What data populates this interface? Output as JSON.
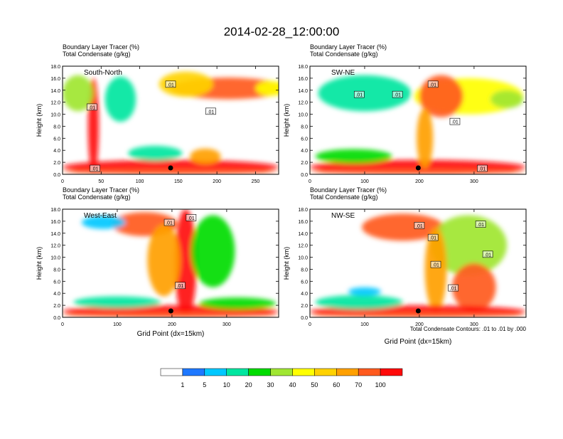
{
  "title": "2014-02-28_12:00:00",
  "colors": [
    "#ffffff",
    "#1e78ff",
    "#00c8ff",
    "#00e6a0",
    "#00dc00",
    "#a0e632",
    "#ffff00",
    "#ffd200",
    "#ffa000",
    "#ff5a1e",
    "#ff0a0a"
  ],
  "colorbar": {
    "labels": [
      "1",
      "5",
      "10",
      "20",
      "30",
      "40",
      "50",
      "60",
      "70",
      "100"
    ]
  },
  "footnote": "Total Condensate Contours: .01 to .01 by .000",
  "chart_data": [
    {
      "type": "heatmap",
      "name": "South-North",
      "label": "South-North",
      "title_lines": [
        "Boundary Layer Tracer    (%)",
        "Total Condensate    (g/kg)"
      ],
      "ylabel": "Height (km)",
      "xlabel": "",
      "xlim": [
        0,
        280
      ],
      "ylim": [
        0,
        18
      ],
      "xticks": [
        0,
        50,
        100,
        150,
        200,
        250
      ],
      "yticks": [
        "0.0",
        "2.0",
        "4.0",
        "6.0",
        "8.0",
        "10.0",
        "12.0",
        "14.0",
        "16.0",
        "18.0"
      ],
      "marker_x": 140,
      "contour_labels": [
        {
          "x": 140,
          "y": 15.0,
          "t": ".01"
        },
        {
          "x": 38,
          "y": 11.2,
          "t": ".01"
        },
        {
          "x": 192,
          "y": 10.5,
          "t": ".01"
        },
        {
          "x": 42,
          "y": 1.0,
          "t": ".01"
        }
      ],
      "blobs": [
        {
          "x": 215,
          "y": 14.3,
          "w": 150,
          "h": 3.6,
          "c": 9
        },
        {
          "x": 160,
          "y": 15.0,
          "w": 70,
          "h": 4.2,
          "c": 7
        },
        {
          "x": 270,
          "y": 14.3,
          "w": 40,
          "h": 2.5,
          "c": 6
        },
        {
          "x": 40,
          "y": 8.0,
          "w": 14,
          "h": 16.0,
          "c": 10
        },
        {
          "x": 20,
          "y": 13.5,
          "w": 40,
          "h": 6.0,
          "c": 5
        },
        {
          "x": 75,
          "y": 12.5,
          "w": 40,
          "h": 7.5,
          "c": 3
        },
        {
          "x": 140,
          "y": 1.2,
          "w": 280,
          "h": 2.4,
          "c": 10
        },
        {
          "x": 140,
          "y": 0.4,
          "w": 280,
          "h": 0.8,
          "c": 9
        },
        {
          "x": 185,
          "y": 3.0,
          "w": 40,
          "h": 2.6,
          "c": 8
        },
        {
          "x": 120,
          "y": 3.5,
          "w": 70,
          "h": 2.5,
          "c": 3
        }
      ]
    },
    {
      "type": "heatmap",
      "name": "SW-NE",
      "label": "SW-NE",
      "title_lines": [
        "Boundary Layer Tracer    (%)",
        "Total Condensate    (g/kg)"
      ],
      "ylabel": "Height (km)",
      "xlabel": "",
      "xlim": [
        0,
        395
      ],
      "ylim": [
        0,
        18
      ],
      "xticks": [
        0,
        100,
        200,
        300
      ],
      "yticks": [
        "0.0",
        "2.0",
        "4.0",
        "6.0",
        "8.0",
        "10.0",
        "12.0",
        "14.0",
        "16.0",
        "18.0"
      ],
      "marker_x": 198,
      "contour_labels": [
        {
          "x": 225,
          "y": 15.0,
          "t": ".01"
        },
        {
          "x": 90,
          "y": 13.3,
          "t": ".01"
        },
        {
          "x": 160,
          "y": 13.3,
          "t": ".01"
        },
        {
          "x": 265,
          "y": 8.8,
          "t": ".01"
        },
        {
          "x": 315,
          "y": 1.0,
          "t": ".01"
        }
      ],
      "blobs": [
        {
          "x": 290,
          "y": 13.0,
          "w": 200,
          "h": 6.0,
          "c": 6
        },
        {
          "x": 240,
          "y": 13.0,
          "w": 80,
          "h": 7.0,
          "c": 9
        },
        {
          "x": 100,
          "y": 13.5,
          "w": 170,
          "h": 6.0,
          "c": 3
        },
        {
          "x": 197,
          "y": 1.2,
          "w": 395,
          "h": 2.4,
          "c": 10
        },
        {
          "x": 197,
          "y": 0.4,
          "w": 395,
          "h": 0.8,
          "c": 9
        },
        {
          "x": 80,
          "y": 3.0,
          "w": 140,
          "h": 2.4,
          "c": 4
        },
        {
          "x": 210,
          "y": 6.0,
          "w": 30,
          "h": 10.0,
          "c": 8
        },
        {
          "x": 360,
          "y": 12.5,
          "w": 60,
          "h": 3.0,
          "c": 5
        }
      ]
    },
    {
      "type": "heatmap",
      "name": "West-East",
      "label": "West-East",
      "title_lines": [
        "Boundary Layer Tracer    (%)",
        "Total Condensate    (g/kg)"
      ],
      "ylabel": "Height (km)",
      "xlabel": "Grid Point (dx=15km)",
      "xlim": [
        0,
        395
      ],
      "ylim": [
        0,
        18
      ],
      "xticks": [
        0,
        100,
        200,
        300
      ],
      "yticks": [
        "0.0",
        "2.0",
        "4.0",
        "6.0",
        "8.0",
        "10.0",
        "12.0",
        "14.0",
        "16.0",
        "18.0"
      ],
      "marker_x": 198,
      "contour_labels": [
        {
          "x": 195,
          "y": 15.8,
          "t": ".01"
        },
        {
          "x": 235,
          "y": 16.6,
          "t": ".01"
        },
        {
          "x": 215,
          "y": 5.3,
          "t": ".01"
        }
      ],
      "blobs": [
        {
          "x": 150,
          "y": 15.5,
          "w": 120,
          "h": 4.0,
          "c": 9
        },
        {
          "x": 75,
          "y": 15.8,
          "w": 80,
          "h": 2.2,
          "c": 2
        },
        {
          "x": 225,
          "y": 9.0,
          "w": 40,
          "h": 18.0,
          "c": 10
        },
        {
          "x": 185,
          "y": 9.5,
          "w": 60,
          "h": 12.0,
          "c": 8
        },
        {
          "x": 275,
          "y": 11.0,
          "w": 80,
          "h": 12.0,
          "c": 4
        },
        {
          "x": 197,
          "y": 1.0,
          "w": 395,
          "h": 2.0,
          "c": 10
        },
        {
          "x": 197,
          "y": 0.4,
          "w": 395,
          "h": 0.8,
          "c": 9
        },
        {
          "x": 100,
          "y": 2.5,
          "w": 160,
          "h": 2.0,
          "c": 3
        },
        {
          "x": 320,
          "y": 2.3,
          "w": 140,
          "h": 2.0,
          "c": 4
        }
      ]
    },
    {
      "type": "heatmap",
      "name": "NW-SE",
      "label": "NW-SE",
      "title_lines": [
        "Boundary Layer Tracer    (%)",
        "Total Condensate    (g/kg)"
      ],
      "ylabel": "Height (km)",
      "xlabel": "Grid Point (dx=15km)",
      "xlim": [
        0,
        395
      ],
      "ylim": [
        0,
        18
      ],
      "xticks": [
        0,
        100,
        200,
        300
      ],
      "yticks": [
        "0.0",
        "2.0",
        "4.0",
        "6.0",
        "8.0",
        "10.0",
        "12.0",
        "14.0",
        "16.0",
        "18.0"
      ],
      "marker_x": 198,
      "contour_labels": [
        {
          "x": 200,
          "y": 15.3,
          "t": ".01"
        },
        {
          "x": 312,
          "y": 15.5,
          "t": ".01"
        },
        {
          "x": 225,
          "y": 13.3,
          "t": ".01"
        },
        {
          "x": 230,
          "y": 8.8,
          "t": ".01"
        },
        {
          "x": 325,
          "y": 10.5,
          "t": ".01"
        },
        {
          "x": 262,
          "y": 4.9,
          "t": ".01"
        }
      ],
      "blobs": [
        {
          "x": 170,
          "y": 15.0,
          "w": 150,
          "h": 4.5,
          "c": 9
        },
        {
          "x": 290,
          "y": 12.0,
          "w": 140,
          "h": 10.0,
          "c": 5
        },
        {
          "x": 230,
          "y": 8.0,
          "w": 40,
          "h": 14.0,
          "c": 8
        },
        {
          "x": 300,
          "y": 5.0,
          "w": 80,
          "h": 8.0,
          "c": 9
        },
        {
          "x": 197,
          "y": 1.0,
          "w": 395,
          "h": 2.0,
          "c": 10
        },
        {
          "x": 197,
          "y": 0.4,
          "w": 395,
          "h": 0.8,
          "c": 9
        },
        {
          "x": 90,
          "y": 2.5,
          "w": 160,
          "h": 2.4,
          "c": 3
        },
        {
          "x": 100,
          "y": 4.3,
          "w": 60,
          "h": 1.4,
          "c": 2
        }
      ]
    }
  ]
}
